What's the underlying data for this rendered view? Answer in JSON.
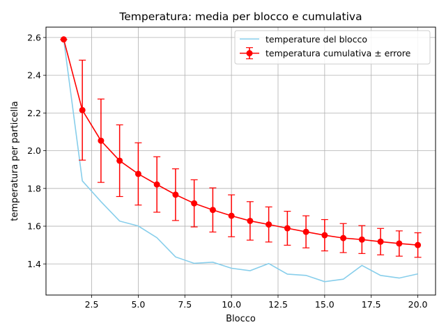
{
  "chart_data": {
    "type": "line",
    "title": "Temperatura: media per blocco e cumulativa",
    "xlabel": "Blocco",
    "ylabel": "temperatura per particella",
    "xlim": [
      0.05,
      20.95
    ],
    "ylim": [
      1.235,
      2.655
    ],
    "grid": true,
    "legend_position": "top-right",
    "x_ticks": [
      2.5,
      5.0,
      7.5,
      10.0,
      12.5,
      15.0,
      17.5,
      20.0
    ],
    "x_tick_labels": [
      "2.5",
      "5.0",
      "7.5",
      "10.0",
      "12.5",
      "15.0",
      "17.5",
      "20.0"
    ],
    "y_ticks": [
      1.4,
      1.6,
      1.8,
      2.0,
      2.2,
      2.4,
      2.6
    ],
    "y_tick_labels": [
      "1.4",
      "1.6",
      "1.8",
      "2.0",
      "2.2",
      "2.4",
      "2.6"
    ],
    "x": [
      1,
      2,
      3,
      4,
      5,
      6,
      7,
      8,
      9,
      10,
      11,
      12,
      13,
      14,
      15,
      16,
      17,
      18,
      19,
      20
    ],
    "series": [
      {
        "name": "temperature del blocco",
        "color": "#87ceeb",
        "values": [
          2.59,
          1.84,
          1.73,
          1.627,
          1.601,
          1.539,
          1.437,
          1.403,
          1.409,
          1.377,
          1.364,
          1.402,
          1.346,
          1.339,
          1.306,
          1.319,
          1.392,
          1.339,
          1.325,
          1.347
        ]
      },
      {
        "name": "temperatura cumulativa ± errore",
        "color": "#ff0000",
        "values": [
          2.59,
          2.215,
          2.053,
          1.947,
          1.877,
          1.821,
          1.767,
          1.721,
          1.686,
          1.655,
          1.628,
          1.609,
          1.589,
          1.57,
          1.552,
          1.537,
          1.529,
          1.518,
          1.508,
          1.5
        ],
        "errors": [
          0.0,
          0.265,
          0.221,
          0.19,
          0.165,
          0.147,
          0.137,
          0.125,
          0.117,
          0.111,
          0.102,
          0.093,
          0.09,
          0.085,
          0.083,
          0.077,
          0.074,
          0.07,
          0.067,
          0.065
        ]
      }
    ]
  }
}
